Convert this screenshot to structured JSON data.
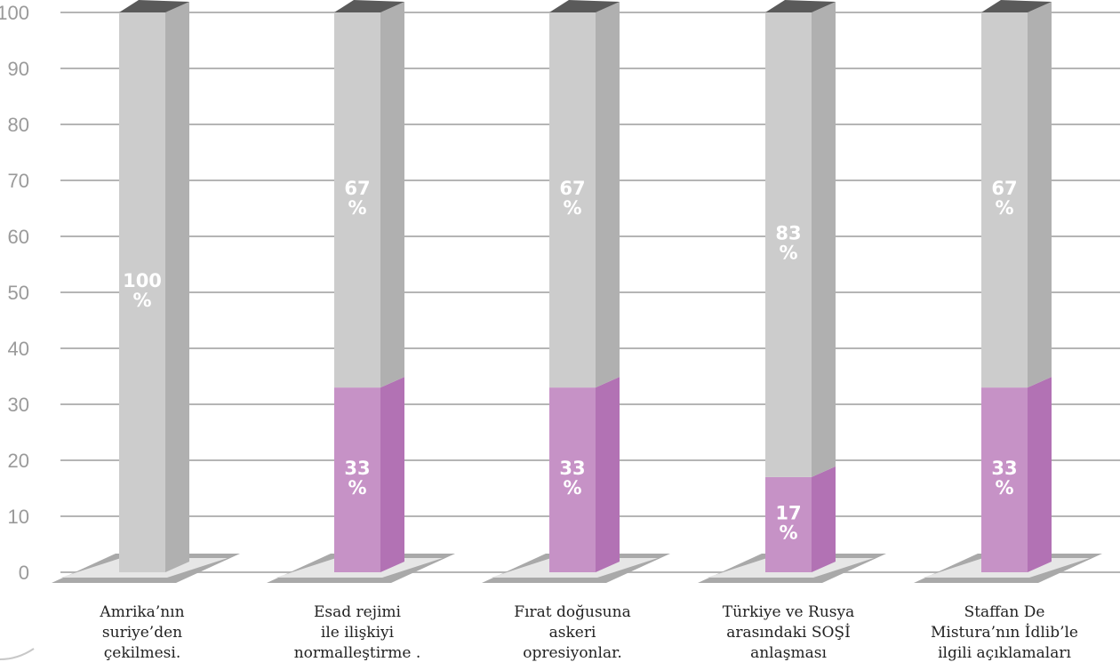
{
  "chart_data": {
    "type": "bar",
    "stacked": true,
    "style": "3d-columns",
    "ylim": [
      0,
      100
    ],
    "yticks": [
      0,
      10,
      20,
      30,
      40,
      50,
      60,
      70,
      80,
      90,
      100
    ],
    "grid": true,
    "categories": [
      [
        "Amrika’nın",
        "suriye’den",
        "çekilmesi."
      ],
      [
        "Esad rejimi",
        "ile ilişkiyi",
        "normalleştirme  ."
      ],
      [
        "Fırat doğusuna",
        "askeri",
        "opresiyonlar."
      ],
      [
        "Türkiye ve Rusya",
        "arasındaki SOŞİ",
        "anlaşması"
      ],
      [
        "Staffan De",
        "Mistura’nın  İdlib’le",
        "ilgili  açıklamaları"
      ]
    ],
    "series": [
      {
        "values": [
          0,
          33,
          33,
          17,
          33
        ],
        "labels": [
          "",
          "33\n%",
          "33\n%",
          "17\n%",
          "33\n%"
        ],
        "color": "#c692c6",
        "side_color": "#b272b4"
      },
      {
        "values": [
          100,
          67,
          67,
          83,
          67
        ],
        "labels": [
          "100\n%",
          "67\n%",
          "67\n%",
          "83\n%",
          "67\n%"
        ],
        "color": "#cccccc",
        "side_color": "#b0b0b0"
      }
    ],
    "top_cap_color": "#5a5a5a",
    "base_color": "#a9a9a9",
    "base_inner_color": "#e6e6e6",
    "grid_color": "#b5b5b5"
  }
}
